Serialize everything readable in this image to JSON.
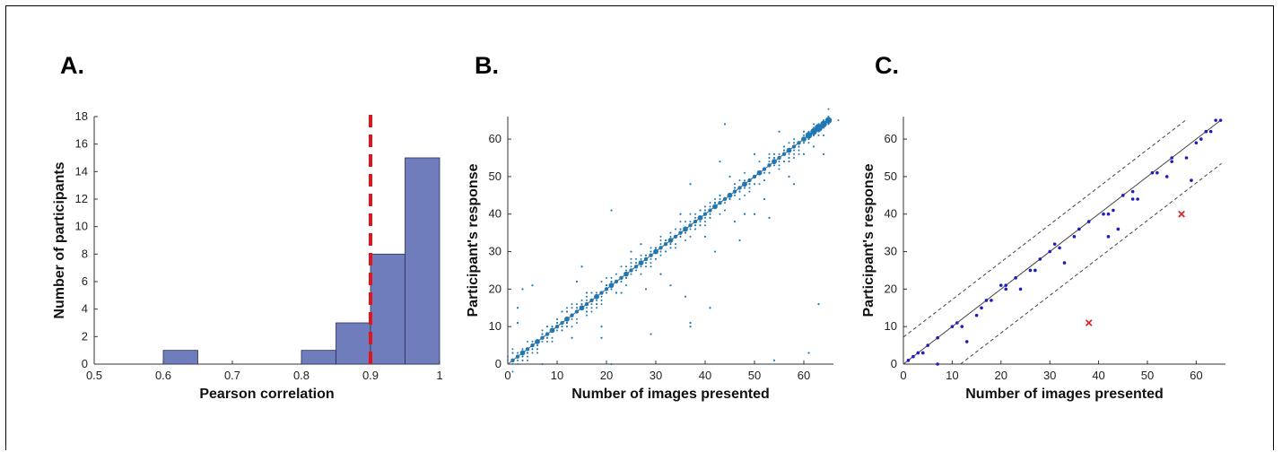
{
  "panels": {
    "a": {
      "letter": "A."
    },
    "b": {
      "letter": "B."
    },
    "c": {
      "letter": "C."
    }
  },
  "chart_data": [
    {
      "type": "bar",
      "subtype": "histogram",
      "xlabel": "Pearson correlation",
      "ylabel": "Number of participants",
      "xlim": [
        0.5,
        1
      ],
      "ylim": [
        0,
        18
      ],
      "xticks": [
        "0.5",
        "0.6",
        "0.7",
        "0.8",
        "0.9",
        "1"
      ],
      "yticks": [
        "0",
        "2",
        "4",
        "6",
        "8",
        "10",
        "12",
        "14",
        "16",
        "18"
      ],
      "bin_edges": [
        0.6,
        0.65,
        0.7,
        0.75,
        0.8,
        0.85,
        0.9,
        0.95,
        1.0
      ],
      "values": [
        1,
        0,
        0,
        0,
        1,
        3,
        8,
        15
      ],
      "threshold_line": {
        "x": 0.9,
        "style": "dashed",
        "color": "#e0151b"
      },
      "bar_color": "#6f7dbc",
      "grid": false
    },
    {
      "type": "scatter",
      "xlabel": "Number of images presented",
      "ylabel": "Participant's response",
      "xlim": [
        0,
        66
      ],
      "ylim": [
        0,
        66
      ],
      "xticks": [
        "0",
        "10",
        "20",
        "30",
        "40",
        "50",
        "60"
      ],
      "yticks": [
        "0",
        "10",
        "20",
        "30",
        "40",
        "50",
        "60"
      ],
      "reference_line": "identity y = x",
      "marker_color": "#1f77b4",
      "marker_size_encodes": "number of responses",
      "diagonal_points_x": [
        1,
        2,
        3,
        4,
        5,
        6,
        7,
        8,
        9,
        10,
        11,
        12,
        13,
        14,
        15,
        16,
        17,
        18,
        19,
        20,
        21,
        22,
        23,
        24,
        25,
        26,
        27,
        28,
        29,
        30,
        31,
        32,
        33,
        34,
        35,
        36,
        37,
        38,
        39,
        40,
        41,
        42,
        43,
        44,
        45,
        46,
        47,
        48,
        49,
        50,
        51,
        52,
        53,
        54,
        55,
        56,
        57,
        58,
        59,
        60,
        61,
        62,
        63,
        64,
        65
      ],
      "off_diagonal_points": [
        {
          "x": 2,
          "y": 11
        },
        {
          "x": 3,
          "y": 20
        },
        {
          "x": 5,
          "y": 21
        },
        {
          "x": 2,
          "y": 15
        },
        {
          "x": 7,
          "y": 0
        },
        {
          "x": 8,
          "y": 10
        },
        {
          "x": 11,
          "y": 14
        },
        {
          "x": 13,
          "y": 7
        },
        {
          "x": 14,
          "y": 22
        },
        {
          "x": 15,
          "y": 26
        },
        {
          "x": 19,
          "y": 10
        },
        {
          "x": 19,
          "y": 7
        },
        {
          "x": 21,
          "y": 41
        },
        {
          "x": 21,
          "y": 0
        },
        {
          "x": 25,
          "y": 30
        },
        {
          "x": 28,
          "y": 20
        },
        {
          "x": 29,
          "y": 8
        },
        {
          "x": 33,
          "y": 21
        },
        {
          "x": 36,
          "y": 18
        },
        {
          "x": 37,
          "y": 11
        },
        {
          "x": 37,
          "y": 10
        },
        {
          "x": 37,
          "y": 48
        },
        {
          "x": 41,
          "y": 15
        },
        {
          "x": 43,
          "y": 54
        },
        {
          "x": 47,
          "y": 33
        },
        {
          "x": 50,
          "y": 40
        },
        {
          "x": 53,
          "y": 39
        },
        {
          "x": 54,
          "y": 1
        },
        {
          "x": 58,
          "y": 48
        },
        {
          "x": 61,
          "y": 3
        },
        {
          "x": 63,
          "y": 16
        },
        {
          "x": 44,
          "y": 64
        },
        {
          "x": 55,
          "y": 62
        },
        {
          "x": 60,
          "y": 56
        },
        {
          "x": 48,
          "y": 40
        },
        {
          "x": 46,
          "y": 38
        },
        {
          "x": 52,
          "y": 44
        },
        {
          "x": 31,
          "y": 24
        },
        {
          "x": 23,
          "y": 19
        },
        {
          "x": 40,
          "y": 34
        },
        {
          "x": 45,
          "y": 50
        },
        {
          "x": 35,
          "y": 40
        },
        {
          "x": 27,
          "y": 32
        },
        {
          "x": 57,
          "y": 50
        },
        {
          "x": 62,
          "y": 58
        },
        {
          "x": 64,
          "y": 56
        },
        {
          "x": 50,
          "y": 56
        },
        {
          "x": 42,
          "y": 30
        }
      ],
      "grid": false
    },
    {
      "type": "scatter",
      "xlabel": "Number of images presented",
      "ylabel": "Participant's response",
      "xlim": [
        0,
        66
      ],
      "ylim": [
        0,
        66
      ],
      "xticks": [
        "0",
        "10",
        "20",
        "30",
        "40",
        "50",
        "60"
      ],
      "yticks": [
        "0",
        "10",
        "20",
        "30",
        "40",
        "50",
        "60"
      ],
      "reference_lines": [
        {
          "label": "identity",
          "slope": 1,
          "intercept": 0,
          "style": "solid"
        },
        {
          "label": "upper bound",
          "slope": 1,
          "intercept": 7.2,
          "style": "dashed"
        },
        {
          "label": "lower bound",
          "slope": 1,
          "intercept": -11.7,
          "style": "dashed"
        }
      ],
      "included_color": "#1c1cc0",
      "excluded_color": "#d42a2a",
      "included_points": [
        {
          "x": 1,
          "y": 1
        },
        {
          "x": 2,
          "y": 2
        },
        {
          "x": 3,
          "y": 3
        },
        {
          "x": 4,
          "y": 3
        },
        {
          "x": 5,
          "y": 5
        },
        {
          "x": 7,
          "y": 7
        },
        {
          "x": 7,
          "y": 0
        },
        {
          "x": 10,
          "y": 10
        },
        {
          "x": 11,
          "y": 11
        },
        {
          "x": 12,
          "y": 10
        },
        {
          "x": 13,
          "y": 6
        },
        {
          "x": 15,
          "y": 13
        },
        {
          "x": 16,
          "y": 15
        },
        {
          "x": 17,
          "y": 17
        },
        {
          "x": 18,
          "y": 17
        },
        {
          "x": 20,
          "y": 21
        },
        {
          "x": 21,
          "y": 20
        },
        {
          "x": 21,
          "y": 21
        },
        {
          "x": 23,
          "y": 23
        },
        {
          "x": 24,
          "y": 20
        },
        {
          "x": 26,
          "y": 25
        },
        {
          "x": 27,
          "y": 25
        },
        {
          "x": 28,
          "y": 28
        },
        {
          "x": 30,
          "y": 30
        },
        {
          "x": 31,
          "y": 32
        },
        {
          "x": 32,
          "y": 31
        },
        {
          "x": 33,
          "y": 27
        },
        {
          "x": 35,
          "y": 34
        },
        {
          "x": 36,
          "y": 36
        },
        {
          "x": 38,
          "y": 38
        },
        {
          "x": 41,
          "y": 40
        },
        {
          "x": 42,
          "y": 34
        },
        {
          "x": 42,
          "y": 40
        },
        {
          "x": 43,
          "y": 41
        },
        {
          "x": 44,
          "y": 36
        },
        {
          "x": 45,
          "y": 45
        },
        {
          "x": 47,
          "y": 46
        },
        {
          "x": 47,
          "y": 44
        },
        {
          "x": 48,
          "y": 44
        },
        {
          "x": 51,
          "y": 51
        },
        {
          "x": 52,
          "y": 51
        },
        {
          "x": 54,
          "y": 50
        },
        {
          "x": 55,
          "y": 55
        },
        {
          "x": 55,
          "y": 54
        },
        {
          "x": 58,
          "y": 55
        },
        {
          "x": 59,
          "y": 49
        },
        {
          "x": 60,
          "y": 59
        },
        {
          "x": 61,
          "y": 60
        },
        {
          "x": 62,
          "y": 62
        },
        {
          "x": 63,
          "y": 62
        },
        {
          "x": 64,
          "y": 65
        },
        {
          "x": 65,
          "y": 65
        }
      ],
      "excluded_points": [
        {
          "x": 38,
          "y": 11
        },
        {
          "x": 57,
          "y": 40
        }
      ],
      "grid": false
    }
  ]
}
